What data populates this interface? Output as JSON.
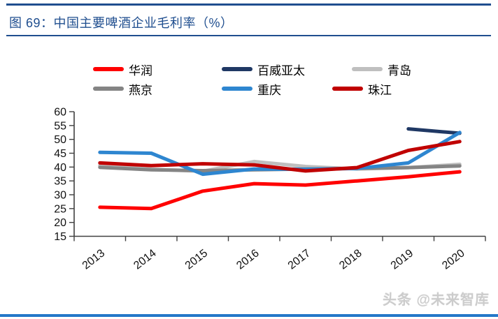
{
  "header": {
    "title": "图 69：中国主要啤酒企业毛利率（%）"
  },
  "watermark": {
    "text": "头条 @未来智库"
  },
  "colors": {
    "title_blue": "#1F4E8F",
    "divider_blue": "#1F4E8F",
    "bottom_bar_blue": "#2478C8",
    "axis": "#404040",
    "tick_text": "#111111"
  },
  "chart_data": {
    "type": "line",
    "title": "中国主要啤酒企业毛利率（%）",
    "categories": [
      "2013",
      "2014",
      "2015",
      "2016",
      "2017",
      "2018",
      "2019",
      "2020"
    ],
    "series": [
      {
        "name": "华润",
        "color": "#FF0000",
        "values": [
          25.5,
          25.0,
          31.3,
          34.0,
          33.5,
          35.0,
          36.5,
          38.3
        ]
      },
      {
        "name": "百威亚太",
        "color": "#1F3864",
        "values": [
          null,
          null,
          null,
          null,
          null,
          null,
          53.8,
          52.2
        ]
      },
      {
        "name": "青岛",
        "color": "#BFBFBF",
        "values": [
          40.5,
          39.2,
          38.5,
          42.0,
          40.2,
          39.3,
          39.8,
          41.0
        ]
      },
      {
        "name": "燕京",
        "color": "#848484",
        "values": [
          39.9,
          39.0,
          38.7,
          39.0,
          39.3,
          39.5,
          39.8,
          40.4
        ]
      },
      {
        "name": "重庆",
        "color": "#2E86D0",
        "values": [
          45.3,
          45.0,
          37.4,
          39.3,
          39.2,
          39.5,
          41.5,
          52.5
        ]
      },
      {
        "name": "珠江",
        "color": "#C00000",
        "values": [
          41.5,
          40.5,
          41.2,
          40.8,
          38.6,
          39.8,
          46.0,
          49.2
        ]
      }
    ],
    "xlabel": "",
    "ylabel": "",
    "ylim": [
      15,
      60
    ],
    "yticks": [
      15,
      20,
      25,
      30,
      35,
      40,
      45,
      50,
      55,
      60
    ],
    "xtick_rotation": -38,
    "grid": false,
    "legend_position": "top"
  }
}
